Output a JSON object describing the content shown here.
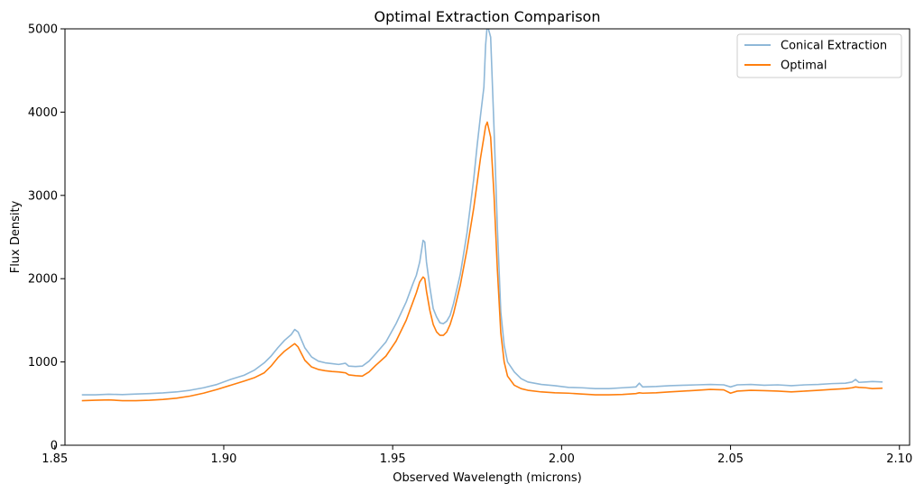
{
  "chart_data": {
    "type": "line",
    "title": "Optimal Extraction Comparison",
    "xlabel": "Observed Wavelength (microns)",
    "ylabel": "Flux Density",
    "xlim": [
      1.853,
      2.103
    ],
    "ylim": [
      0,
      5000
    ],
    "xticks": [
      1.85,
      1.9,
      1.95,
      2.0,
      2.05,
      2.1
    ],
    "xtick_labels": [
      "1.85",
      "1.90",
      "1.95",
      "2.00",
      "2.05",
      "2.10"
    ],
    "yticks": [
      0,
      1000,
      2000,
      3000,
      4000,
      5000
    ],
    "ytick_labels": [
      "0",
      "1000",
      "2000",
      "3000",
      "4000",
      "5000"
    ],
    "grid": false,
    "legend_position": "top-right",
    "series": [
      {
        "name": "Conical Extraction",
        "color": "#8fb8d8",
        "points": [
          [
            1.858,
            605
          ],
          [
            1.862,
            605
          ],
          [
            1.866,
            612
          ],
          [
            1.87,
            608
          ],
          [
            1.874,
            615
          ],
          [
            1.878,
            620
          ],
          [
            1.882,
            628
          ],
          [
            1.886,
            640
          ],
          [
            1.89,
            660
          ],
          [
            1.894,
            690
          ],
          [
            1.898,
            730
          ],
          [
            1.902,
            790
          ],
          [
            1.906,
            840
          ],
          [
            1.909,
            900
          ],
          [
            1.912,
            990
          ],
          [
            1.914,
            1070
          ],
          [
            1.916,
            1170
          ],
          [
            1.918,
            1260
          ],
          [
            1.92,
            1330
          ],
          [
            1.921,
            1390
          ],
          [
            1.922,
            1360
          ],
          [
            1.924,
            1170
          ],
          [
            1.926,
            1060
          ],
          [
            1.928,
            1010
          ],
          [
            1.93,
            990
          ],
          [
            1.932,
            980
          ],
          [
            1.934,
            970
          ],
          [
            1.936,
            985
          ],
          [
            1.937,
            950
          ],
          [
            1.939,
            945
          ],
          [
            1.941,
            950
          ],
          [
            1.943,
            1010
          ],
          [
            1.945,
            1100
          ],
          [
            1.948,
            1240
          ],
          [
            1.951,
            1460
          ],
          [
            1.954,
            1720
          ],
          [
            1.956,
            1940
          ],
          [
            1.957,
            2040
          ],
          [
            1.958,
            2200
          ],
          [
            1.959,
            2460
          ],
          [
            1.9595,
            2440
          ],
          [
            1.96,
            2200
          ],
          [
            1.961,
            1900
          ],
          [
            1.962,
            1640
          ],
          [
            1.963,
            1540
          ],
          [
            1.964,
            1470
          ],
          [
            1.965,
            1460
          ],
          [
            1.966,
            1490
          ],
          [
            1.967,
            1560
          ],
          [
            1.968,
            1700
          ],
          [
            1.97,
            2050
          ],
          [
            1.972,
            2550
          ],
          [
            1.974,
            3200
          ],
          [
            1.975,
            3600
          ],
          [
            1.976,
            3960
          ],
          [
            1.977,
            4300
          ],
          [
            1.9775,
            4800
          ],
          [
            1.978,
            5050
          ],
          [
            1.979,
            4900
          ],
          [
            1.98,
            3800
          ],
          [
            1.981,
            2600
          ],
          [
            1.982,
            1600
          ],
          [
            1.983,
            1200
          ],
          [
            1.984,
            1000
          ],
          [
            1.986,
            880
          ],
          [
            1.988,
            800
          ],
          [
            1.99,
            760
          ],
          [
            1.994,
            730
          ],
          [
            1.998,
            715
          ],
          [
            2.002,
            695
          ],
          [
            2.006,
            690
          ],
          [
            2.01,
            680
          ],
          [
            2.014,
            680
          ],
          [
            2.018,
            690
          ],
          [
            2.022,
            700
          ],
          [
            2.023,
            745
          ],
          [
            2.024,
            700
          ],
          [
            2.028,
            705
          ],
          [
            2.032,
            715
          ],
          [
            2.036,
            720
          ],
          [
            2.04,
            725
          ],
          [
            2.044,
            730
          ],
          [
            2.048,
            725
          ],
          [
            2.05,
            700
          ],
          [
            2.052,
            725
          ],
          [
            2.056,
            730
          ],
          [
            2.06,
            720
          ],
          [
            2.064,
            725
          ],
          [
            2.068,
            715
          ],
          [
            2.072,
            725
          ],
          [
            2.076,
            730
          ],
          [
            2.08,
            740
          ],
          [
            2.084,
            745
          ],
          [
            2.086,
            760
          ],
          [
            2.087,
            790
          ],
          [
            2.088,
            755
          ],
          [
            2.09,
            760
          ],
          [
            2.092,
            765
          ],
          [
            2.095,
            760
          ]
        ]
      },
      {
        "name": "Optimal",
        "color": "#ff7f0e",
        "points": [
          [
            1.858,
            535
          ],
          [
            1.862,
            540
          ],
          [
            1.866,
            545
          ],
          [
            1.87,
            535
          ],
          [
            1.874,
            535
          ],
          [
            1.878,
            540
          ],
          [
            1.882,
            550
          ],
          [
            1.886,
            565
          ],
          [
            1.89,
            590
          ],
          [
            1.894,
            625
          ],
          [
            1.898,
            670
          ],
          [
            1.902,
            720
          ],
          [
            1.906,
            770
          ],
          [
            1.909,
            810
          ],
          [
            1.912,
            870
          ],
          [
            1.914,
            950
          ],
          [
            1.916,
            1050
          ],
          [
            1.918,
            1130
          ],
          [
            1.92,
            1190
          ],
          [
            1.921,
            1220
          ],
          [
            1.922,
            1180
          ],
          [
            1.924,
            1020
          ],
          [
            1.926,
            940
          ],
          [
            1.928,
            910
          ],
          [
            1.93,
            895
          ],
          [
            1.932,
            885
          ],
          [
            1.934,
            880
          ],
          [
            1.936,
            870
          ],
          [
            1.937,
            845
          ],
          [
            1.939,
            835
          ],
          [
            1.941,
            830
          ],
          [
            1.943,
            880
          ],
          [
            1.945,
            960
          ],
          [
            1.948,
            1070
          ],
          [
            1.951,
            1250
          ],
          [
            1.954,
            1500
          ],
          [
            1.956,
            1720
          ],
          [
            1.957,
            1830
          ],
          [
            1.958,
            1960
          ],
          [
            1.959,
            2020
          ],
          [
            1.9595,
            2000
          ],
          [
            1.96,
            1850
          ],
          [
            1.961,
            1620
          ],
          [
            1.962,
            1450
          ],
          [
            1.963,
            1360
          ],
          [
            1.964,
            1320
          ],
          [
            1.965,
            1320
          ],
          [
            1.966,
            1360
          ],
          [
            1.967,
            1450
          ],
          [
            1.968,
            1580
          ],
          [
            1.97,
            1920
          ],
          [
            1.972,
            2350
          ],
          [
            1.974,
            2850
          ],
          [
            1.975,
            3150
          ],
          [
            1.976,
            3450
          ],
          [
            1.977,
            3700
          ],
          [
            1.9775,
            3830
          ],
          [
            1.978,
            3880
          ],
          [
            1.979,
            3700
          ],
          [
            1.98,
            3000
          ],
          [
            1.981,
            2100
          ],
          [
            1.982,
            1350
          ],
          [
            1.983,
            1000
          ],
          [
            1.984,
            830
          ],
          [
            1.986,
            720
          ],
          [
            1.988,
            680
          ],
          [
            1.99,
            660
          ],
          [
            1.994,
            640
          ],
          [
            1.998,
            630
          ],
          [
            2.002,
            625
          ],
          [
            2.006,
            615
          ],
          [
            2.01,
            605
          ],
          [
            2.014,
            605
          ],
          [
            2.018,
            610
          ],
          [
            2.022,
            620
          ],
          [
            2.023,
            630
          ],
          [
            2.024,
            625
          ],
          [
            2.028,
            630
          ],
          [
            2.032,
            640
          ],
          [
            2.036,
            650
          ],
          [
            2.04,
            660
          ],
          [
            2.044,
            670
          ],
          [
            2.048,
            665
          ],
          [
            2.05,
            625
          ],
          [
            2.052,
            650
          ],
          [
            2.056,
            660
          ],
          [
            2.06,
            655
          ],
          [
            2.064,
            650
          ],
          [
            2.068,
            640
          ],
          [
            2.072,
            650
          ],
          [
            2.076,
            660
          ],
          [
            2.08,
            670
          ],
          [
            2.084,
            680
          ],
          [
            2.086,
            690
          ],
          [
            2.087,
            700
          ],
          [
            2.088,
            695
          ],
          [
            2.09,
            690
          ],
          [
            2.092,
            680
          ],
          [
            2.095,
            685
          ]
        ]
      }
    ]
  }
}
